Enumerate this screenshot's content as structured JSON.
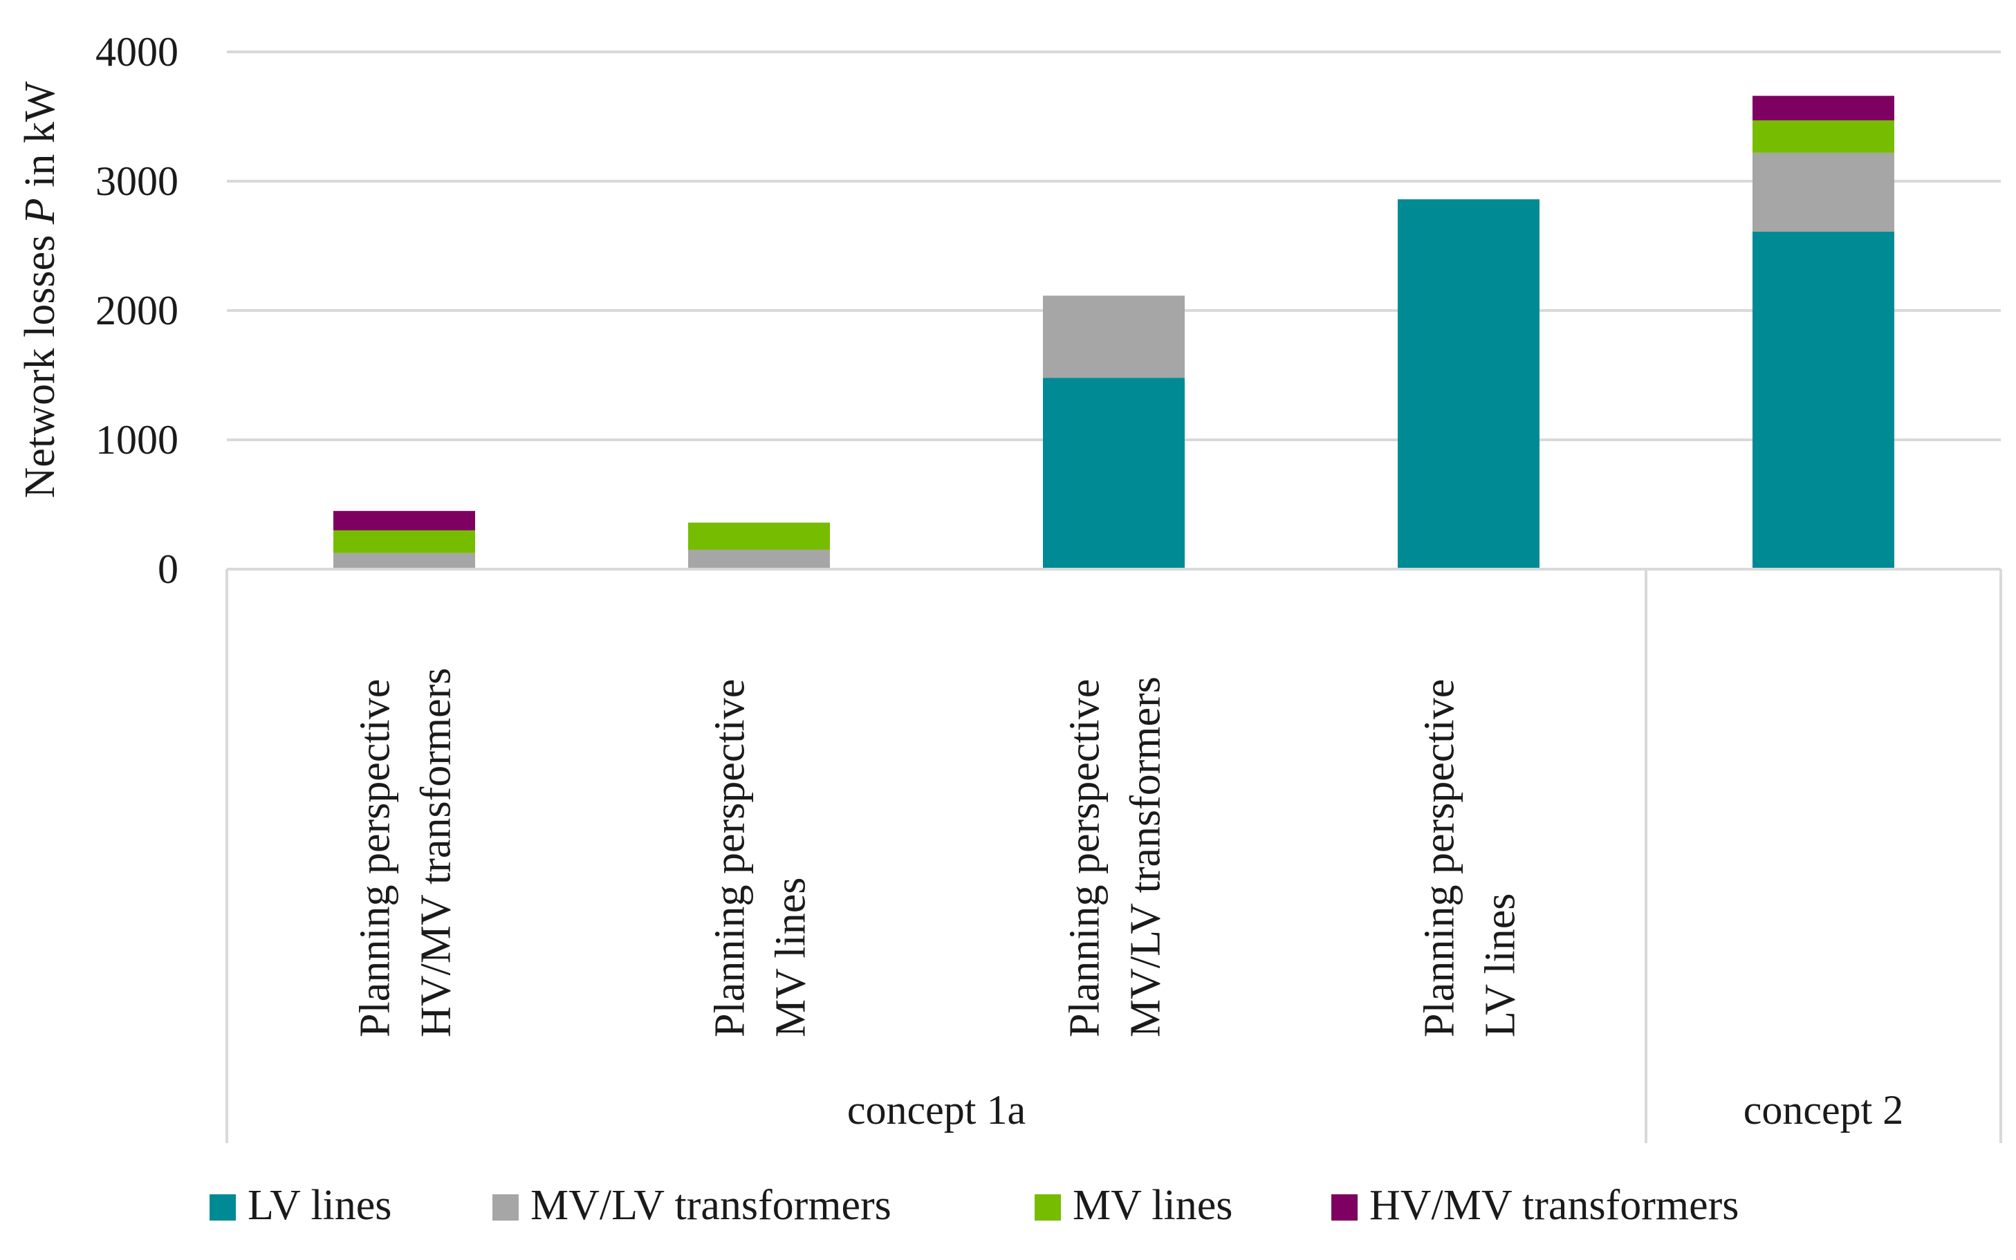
{
  "chart_data": {
    "type": "bar",
    "stacked": true,
    "title": "",
    "xlabel": "",
    "ylabel": {
      "prefix": "Network losses ",
      "variable": "P",
      "suffix": " in kW"
    },
    "ylim": [
      0,
      4000
    ],
    "yticks": [
      0,
      1000,
      2000,
      3000,
      4000
    ],
    "grid": true,
    "legend_position": "bottom",
    "categories": [
      [
        "Planning perspective",
        "HV/MV transformers"
      ],
      [
        "Planning perspective",
        "MV lines"
      ],
      [
        "Planning perspective",
        "MV/LV transformers"
      ],
      [
        "Planning perspective",
        "LV lines"
      ],
      [
        "",
        ""
      ]
    ],
    "groups": [
      {
        "label": "concept 1a",
        "category_count": 4
      },
      {
        "label": "concept 2",
        "category_count": 1
      }
    ],
    "series": [
      {
        "name": "LV lines",
        "color": "#008b94",
        "values": [
          0,
          0,
          1480,
          2860,
          2610
        ]
      },
      {
        "name": "MV/LV transformers",
        "color": "#a6a6a6",
        "values": [
          125,
          150,
          635,
          0,
          610
        ]
      },
      {
        "name": "MV lines",
        "color": "#76bc00",
        "values": [
          175,
          210,
          0,
          0,
          250
        ]
      },
      {
        "name": "HV/MV transformers",
        "color": "#7e0060",
        "values": [
          150,
          0,
          0,
          0,
          190
        ]
      }
    ]
  }
}
